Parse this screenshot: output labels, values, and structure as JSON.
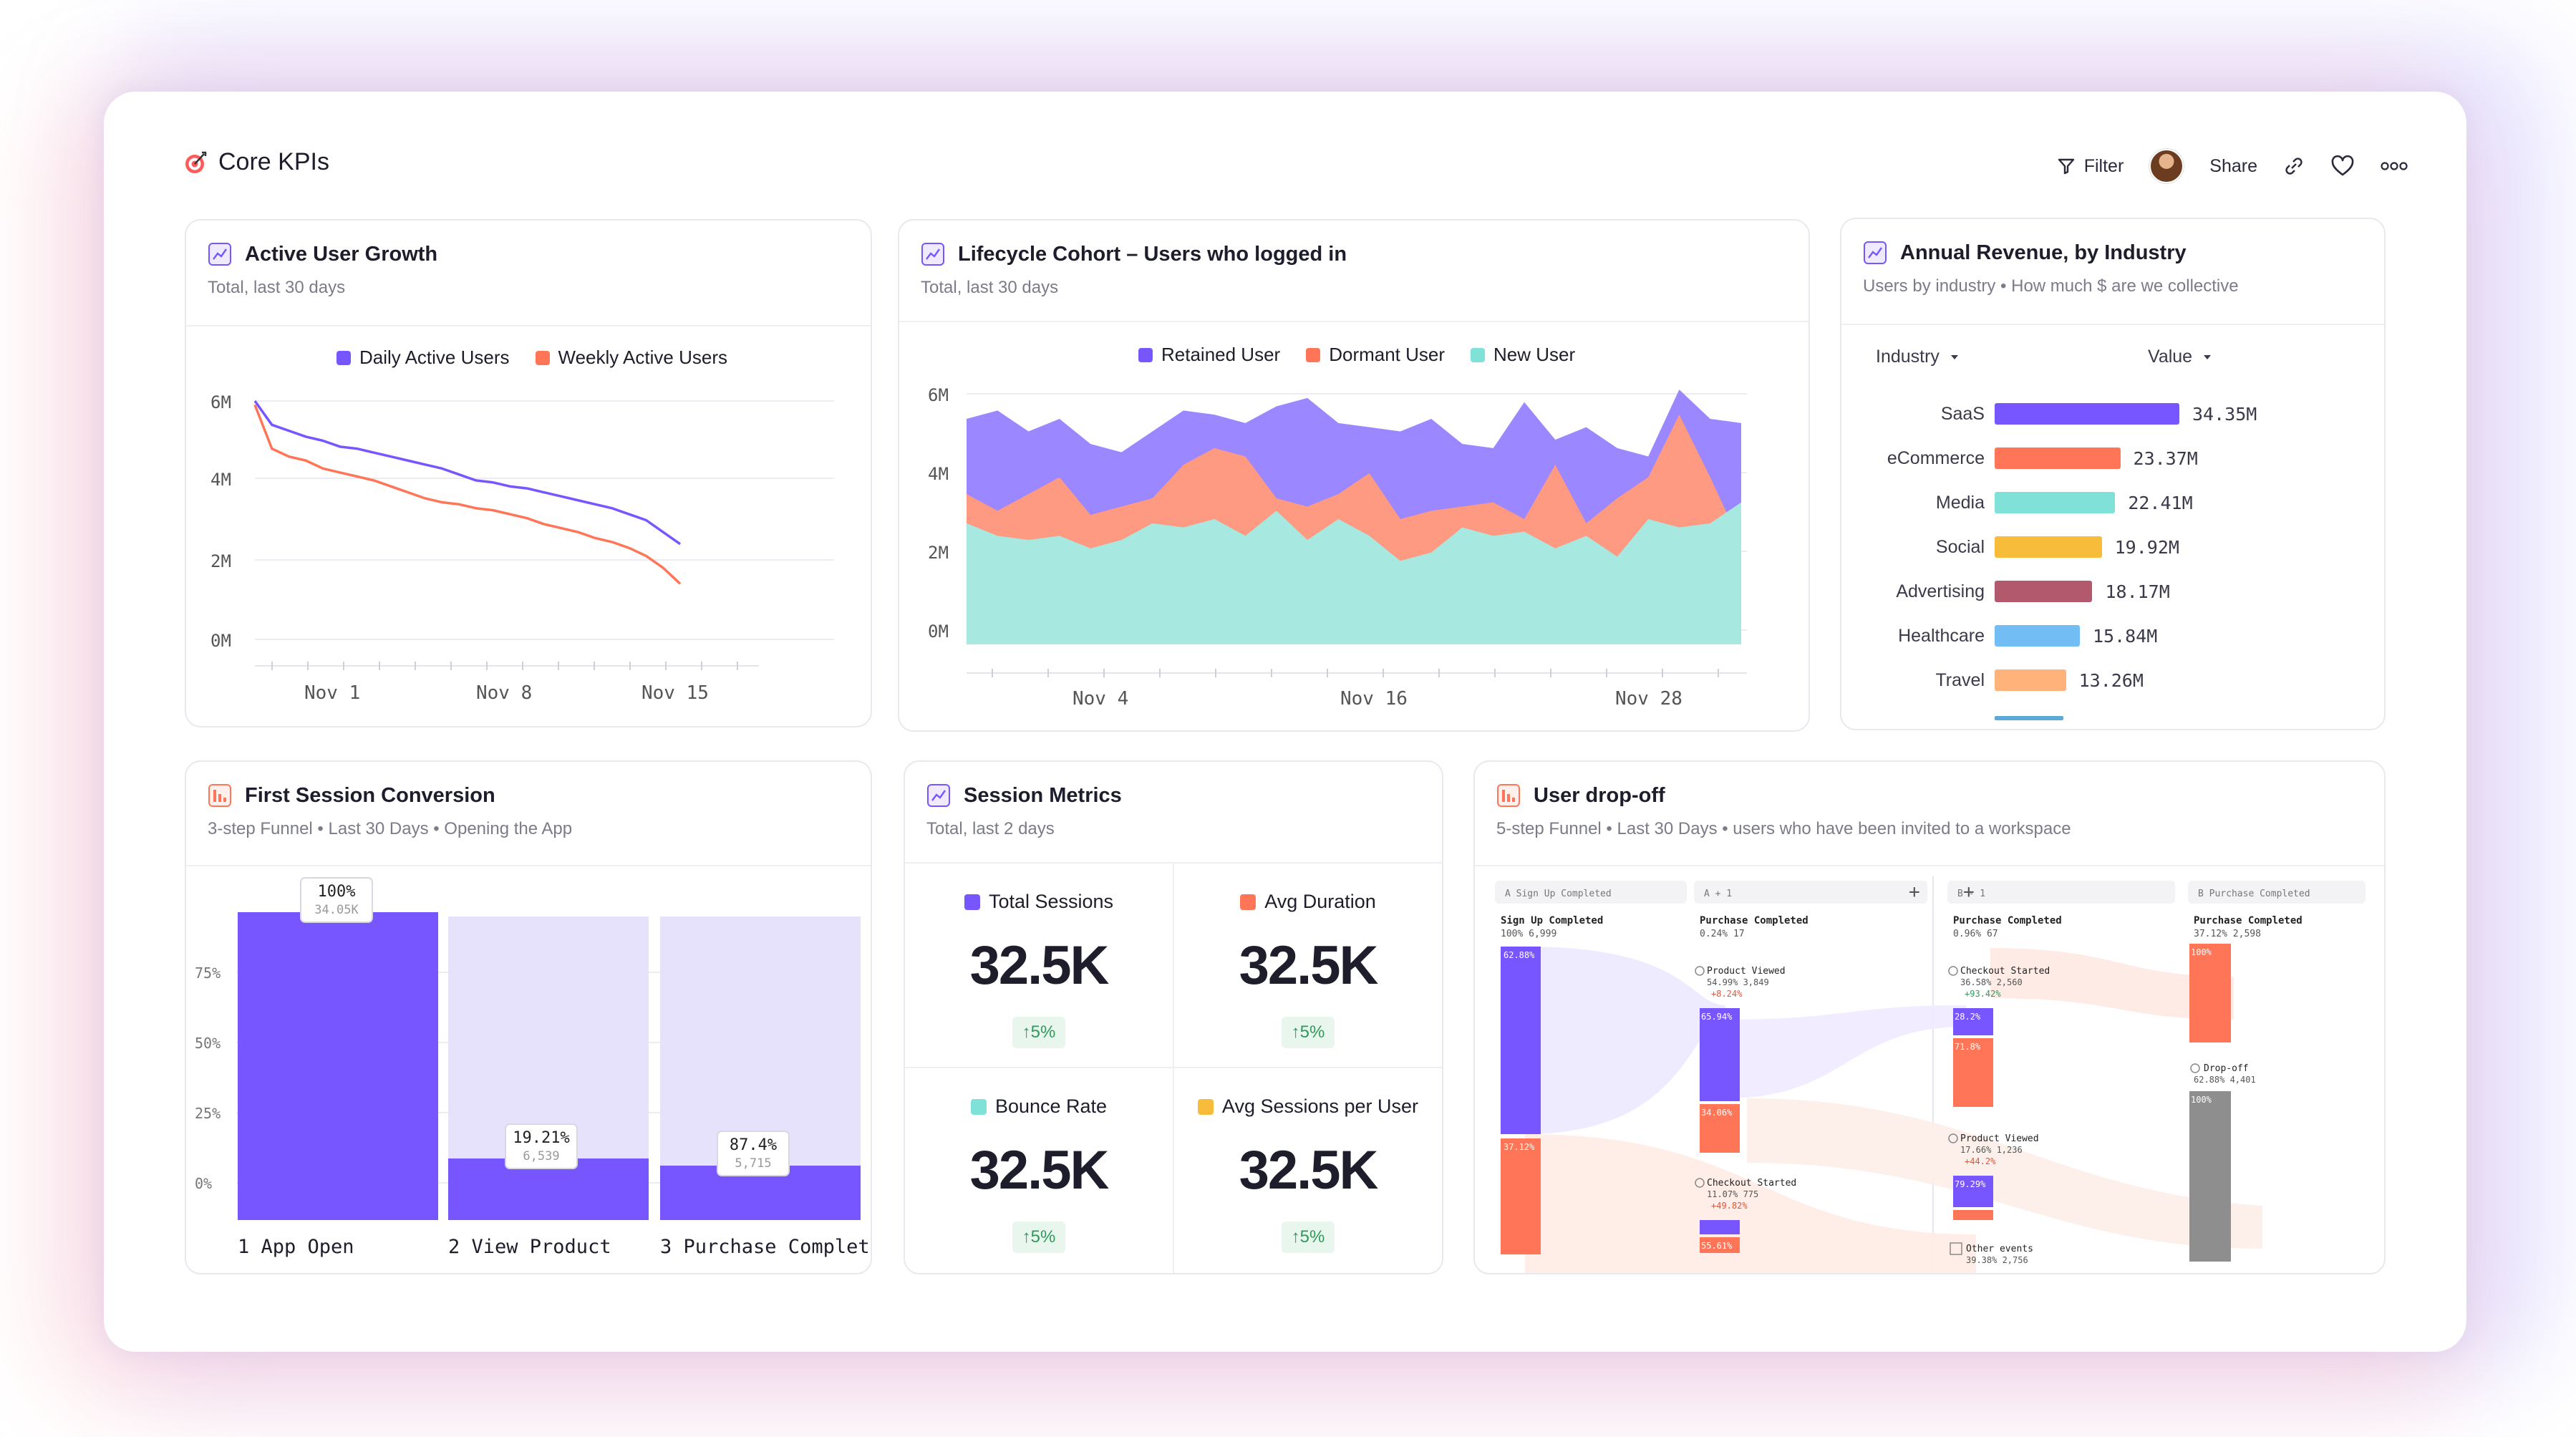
{
  "header": {
    "title": "Core KPIs",
    "actions": {
      "filter": "Filter",
      "share": "Share"
    }
  },
  "colors": {
    "purple": "#7856ff",
    "orange": "#ff7557",
    "teal": "#80e1d9",
    "yellow": "#f8bc3b",
    "maroon": "#b2596e",
    "blue": "#72bef4",
    "peach": "#ffb27a",
    "lavender": "#e3dffc",
    "green": "#2f9a5b"
  },
  "active_user_growth": {
    "title": "Active User Growth",
    "subtitle": "Total, last 30 days",
    "chart_data": {
      "type": "line",
      "x_ticks": [
        "Nov 1",
        "Nov 8",
        "Nov 15"
      ],
      "y_ticks": [
        "6M",
        "4M",
        "2M",
        "0M"
      ],
      "ylim": [
        0,
        6000000
      ],
      "series": [
        {
          "name": "Daily Active Users",
          "color": "#7856ff",
          "values": [
            6.0,
            5.4,
            5.25,
            5.1,
            5.0,
            4.85,
            4.8,
            4.7,
            4.6,
            4.5,
            4.4,
            4.3,
            4.15,
            4.0,
            3.95,
            3.85,
            3.8,
            3.7,
            3.6,
            3.5,
            3.4,
            3.3,
            3.15,
            3.0,
            2.7,
            2.4
          ]
        },
        {
          "name": "Weekly Active Users",
          "color": "#ff7557",
          "values": [
            5.9,
            4.8,
            4.6,
            4.5,
            4.3,
            4.2,
            4.1,
            4.0,
            3.85,
            3.7,
            3.55,
            3.45,
            3.4,
            3.3,
            3.25,
            3.15,
            3.05,
            2.9,
            2.8,
            2.7,
            2.55,
            2.45,
            2.3,
            2.1,
            1.8,
            1.4
          ]
        }
      ]
    }
  },
  "lifecycle_cohort": {
    "title": "Lifecycle Cohort – Users who logged in",
    "subtitle": "Total, last 30 days",
    "chart_data": {
      "type": "area",
      "x_ticks": [
        "Nov 4",
        "Nov 16",
        "Nov 28"
      ],
      "y_ticks": [
        "6M",
        "4M",
        "2M",
        "0M"
      ],
      "ylim": [
        0,
        6000000
      ],
      "series": [
        {
          "name": "Retained User",
          "color": "#9b87ff",
          "totals": [
            5.4,
            5.6,
            5.1,
            5.4,
            4.8,
            4.6,
            5.1,
            5.6,
            5.5,
            5.3,
            5.7,
            5.9,
            5.3,
            5.2,
            5.1,
            5.4,
            4.8,
            4.7,
            5.8,
            4.9,
            5.2,
            4.7,
            4.5,
            6.1,
            5.4,
            5.3
          ]
        },
        {
          "name": "Dormant User",
          "color": "#ff9a82",
          "totals": [
            3.6,
            3.2,
            3.6,
            4.0,
            3.1,
            3.3,
            3.5,
            4.3,
            4.7,
            4.5,
            3.5,
            3.3,
            3.6,
            4.1,
            3.0,
            3.2,
            3.3,
            3.4,
            3.0,
            4.3,
            2.9,
            3.5,
            4.0,
            5.5,
            4.0,
            2.4
          ]
        },
        {
          "name": "New User",
          "color": "#a7e8e1",
          "totals": [
            2.9,
            2.6,
            2.5,
            2.6,
            2.3,
            2.5,
            2.9,
            2.8,
            3.0,
            2.6,
            3.2,
            2.5,
            3.0,
            2.6,
            2.0,
            2.2,
            2.8,
            2.6,
            2.7,
            2.3,
            2.6,
            2.1,
            3.0,
            2.8,
            2.9,
            3.4
          ]
        }
      ]
    }
  },
  "annual_revenue": {
    "title": "Annual Revenue, by Industry",
    "subtitle": "Users by industry • How much $ are we collective",
    "col_industry": "Industry",
    "col_value": "Value",
    "chart_data": {
      "type": "bar",
      "categories": [
        "SaaS",
        "eCommerce",
        "Media",
        "Social",
        "Advertising",
        "Healthcare",
        "Travel"
      ],
      "values": [
        34.35,
        23.37,
        22.41,
        19.92,
        18.17,
        15.84,
        13.26
      ],
      "labels": [
        "34.35M",
        "23.37M",
        "22.41M",
        "19.92M",
        "18.17M",
        "15.84M",
        "13.26M"
      ],
      "colors": [
        "#7856ff",
        "#ff7557",
        "#80e1d9",
        "#f8bc3b",
        "#b2596e",
        "#72bef4",
        "#ffb27a"
      ]
    }
  },
  "first_session": {
    "title": "First Session Conversion",
    "subtitle": "3-step Funnel • Last 30 Days • Opening the App",
    "chart_data": {
      "type": "bar",
      "y_ticks": [
        "75%",
        "50%",
        "25%",
        "0%"
      ],
      "steps": [
        {
          "label": "1 App Open",
          "pct": 100,
          "pct_label": "100%",
          "count": "34.05K"
        },
        {
          "label": "2 View Product",
          "pct": 19.21,
          "pct_label": "19.21%",
          "count": "6,539"
        },
        {
          "label": "3 Purchase Complete",
          "pct": 16.8,
          "pct_label": "87.4%",
          "count": "5,715"
        }
      ]
    }
  },
  "session_metrics": {
    "title": "Session Metrics",
    "subtitle": "Total, last 2 days",
    "metrics": [
      {
        "label": "Total Sessions",
        "value": "32.5K",
        "delta": "↑5%",
        "color": "#7856ff"
      },
      {
        "label": "Avg Duration",
        "value": "32.5K",
        "delta": "↑5%",
        "color": "#ff7557"
      },
      {
        "label": "Bounce Rate",
        "value": "32.5K",
        "delta": "↑5%",
        "color": "#80e1d9"
      },
      {
        "label": "Avg Sessions per User",
        "value": "32.5K",
        "delta": "↑5%",
        "color": "#f8bc3b"
      }
    ]
  },
  "user_dropoff": {
    "title": "User drop-off",
    "subtitle": "5-step Funnel • Last 30 Days • users who have been invited to a workspace",
    "columns": [
      {
        "head": "A  Sign Up Completed",
        "title": "Sign Up Completed",
        "stat": "100%  6,999",
        "pct_top": "62.88%",
        "pct_bottom": "37.12%"
      },
      {
        "head": "A + 1",
        "title": "Purchase Completed",
        "stat": "0.24%  17"
      },
      {
        "head": "B - 1",
        "title": "Purchase Completed",
        "stat": "0.96%  67"
      },
      {
        "head": "B  Purchase Completed",
        "title": "Purchase Completed",
        "stat": "37.12%  2,598",
        "pct_top": "100%",
        "drop_title": "Drop-off",
        "drop_stat": "62.88%  4,401",
        "pct_bottom": "100%"
      }
    ],
    "nodes_a1": [
      {
        "title": "Product Viewed",
        "stat": "54.99%  3,849",
        "delta": "+8.24%",
        "bar_pct": "65.94%",
        "bar2_pct": "34.06%"
      },
      {
        "title": "Checkout Started",
        "stat": "11.07%  775",
        "delta": "+49.82%",
        "bar_pct": "55.61%"
      }
    ],
    "nodes_b1": [
      {
        "title": "Checkout Started",
        "stat": "36.58%  2,560",
        "delta": "+93.42%",
        "bar_pct": "28.2%",
        "bar2_pct": "71.8%"
      },
      {
        "title": "Product Viewed",
        "stat": "17.66%  1,236",
        "delta": "+44.2%",
        "bar_pct": "79.29%"
      },
      {
        "title": "Other events",
        "stat": "39.38%  2,756"
      }
    ]
  }
}
